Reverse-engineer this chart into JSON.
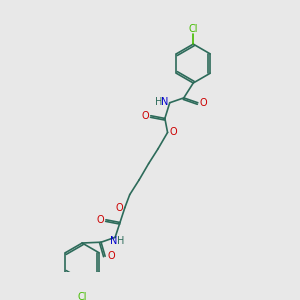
{
  "background_color": "#e8e8e8",
  "figsize": [
    3.0,
    3.0
  ],
  "dpi": 100,
  "bond_color": "#2d6b5a",
  "O_color": "#cc0000",
  "N_color": "#0000cc",
  "Cl_color": "#44bb00",
  "font_size": 7.0,
  "bond_width": 1.2,
  "xlim": [
    0,
    10
  ],
  "ylim": [
    0,
    10
  ]
}
